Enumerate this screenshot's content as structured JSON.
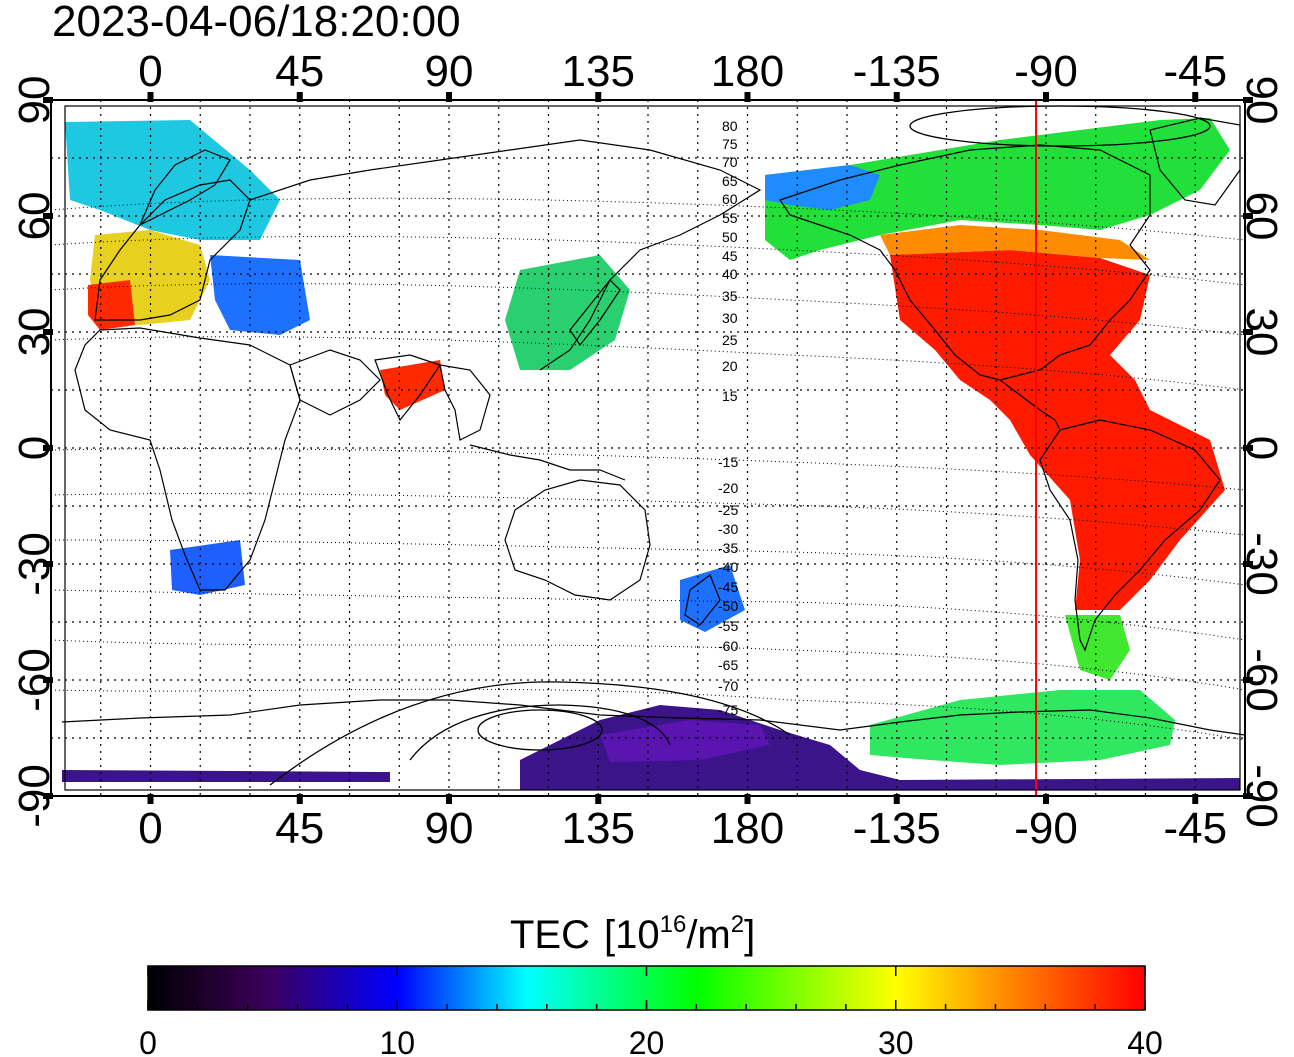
{
  "header": {
    "timestamp": "2023-04-06/18:20:00"
  },
  "map": {
    "x_ticks": [
      "0",
      "45",
      "90",
      "135",
      "180",
      "-135",
      "-90",
      "-45"
    ],
    "y_ticks": [
      "90",
      "60",
      "30",
      "0",
      "-30",
      "-60",
      "-90"
    ],
    "magnetic_lat_labels": {
      "north": [
        "80",
        "75",
        "70",
        "65",
        "60",
        "55",
        "50",
        "45",
        "40",
        "35",
        "30",
        "25",
        "20",
        "15"
      ],
      "south": [
        "-15",
        "-20",
        "-25",
        "-30",
        "-35",
        "-40",
        "-45",
        "-50",
        "-55",
        "-60",
        "-65",
        "-70",
        "-75"
      ]
    },
    "terminator_longitude": -93,
    "terminator_color": "#ff0000"
  },
  "colorbar": {
    "title": "TEC",
    "unit_prefix": "[10",
    "unit_exp": "16",
    "unit_mid": "/m",
    "unit_exp2": "2",
    "unit_suffix": "]",
    "ticks": [
      "0",
      "10",
      "20",
      "30",
      "40"
    ],
    "range": [
      0,
      40
    ],
    "stops": [
      "#000000",
      "#3c005a",
      "#0000ff",
      "#00ffff",
      "#00ff00",
      "#ffff00",
      "#ff8000",
      "#ff0000"
    ]
  }
}
